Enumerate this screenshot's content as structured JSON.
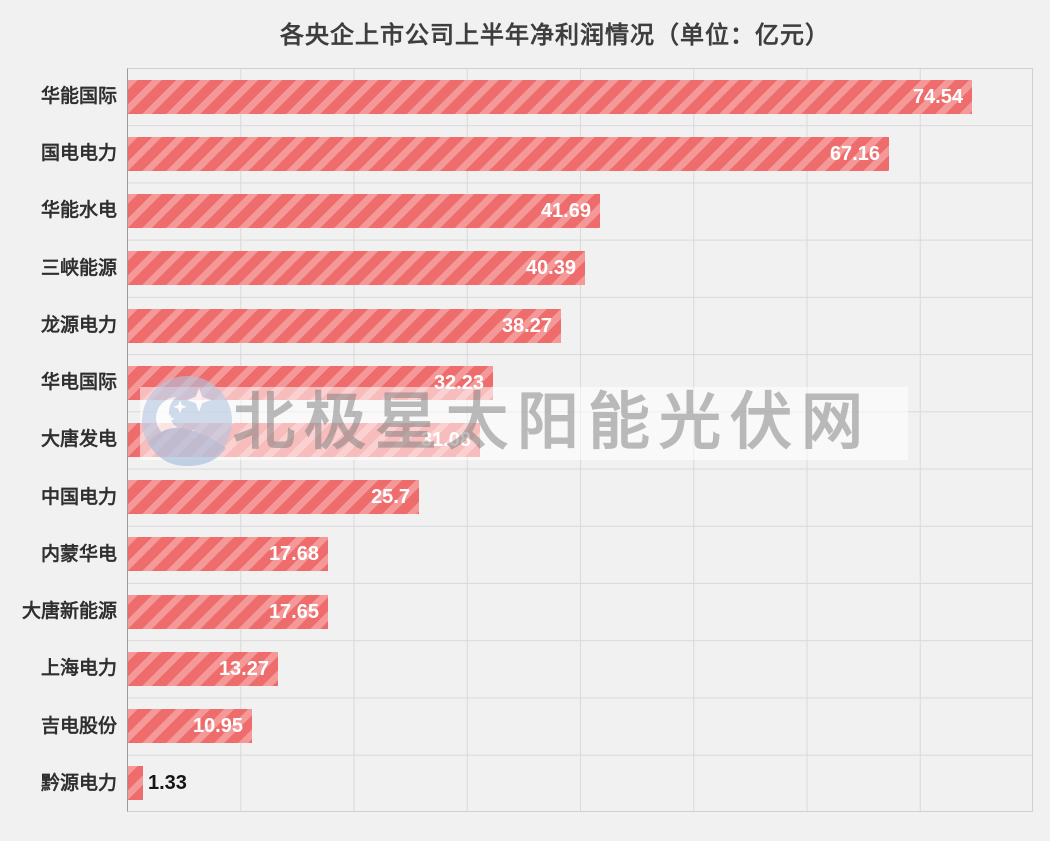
{
  "title": "各央企上市公司上半年净利润情况（单位：亿元）",
  "watermark": {
    "text": "北极星太阳能光伏网",
    "logo": "polar-star-moon-logo",
    "logo_color": "#b4c7e1",
    "band_color": "rgba(255,255,255,0.55)"
  },
  "chart_data": {
    "type": "bar",
    "orientation": "horizontal",
    "title": "各央企上市公司上半年净利润情况（单位：亿元）",
    "unit": "亿元",
    "categories": [
      "华能国际",
      "国电电力",
      "华能水电",
      "三峡能源",
      "龙源电力",
      "华电国际",
      "大唐发电",
      "中国电力",
      "内蒙华电",
      "大唐新能源",
      "上海电力",
      "吉电股份",
      "黔源电力"
    ],
    "values": [
      74.54,
      67.16,
      41.69,
      40.39,
      38.27,
      32.23,
      31.08,
      25.7,
      17.68,
      17.65,
      13.27,
      10.95,
      1.33
    ],
    "value_labels": [
      "74.54",
      "67.16",
      "41.69",
      "40.39",
      "38.27",
      "32.23",
      "31.08",
      "25.7",
      "17.68",
      "17.65",
      "13.27",
      "10.95",
      "1.33"
    ],
    "xlim": [
      0,
      80
    ],
    "gridline_interval": 10,
    "grid": true,
    "legend": false,
    "bar_color": "#ee6c6c",
    "bar_stripe_color": "#f59898",
    "value_label_color_inside": "#ffffff",
    "value_label_color_outside": "#141414",
    "background_color": "#f1f1f1",
    "gridline_color": "#d9d9d9",
    "axis_color": "#9c9c9c"
  }
}
